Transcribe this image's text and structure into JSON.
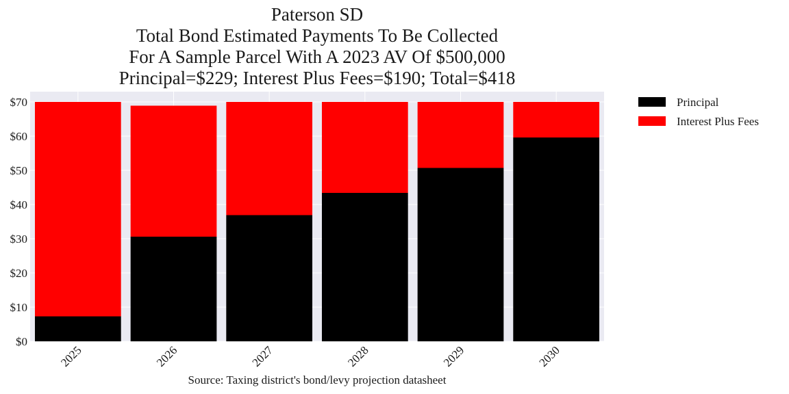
{
  "chart_data": {
    "type": "bar",
    "stacked": true,
    "title_lines": [
      "Paterson SD",
      "Total Bond Estimated Payments To Be Collected",
      "For A Sample Parcel With A 2023 AV Of $500,000",
      "Principal=$229; Interest Plus Fees=$190; Total=$418"
    ],
    "categories": [
      "2025",
      "2026",
      "2027",
      "2028",
      "2029",
      "2030"
    ],
    "series": [
      {
        "name": "Principal",
        "color": "#000000",
        "values": [
          7.3,
          30.6,
          36.9,
          43.4,
          50.7,
          59.6
        ]
      },
      {
        "name": "Interest Plus Fees",
        "color": "#ff0000",
        "values": [
          62.7,
          38.3,
          33.1,
          26.6,
          19.3,
          10.4
        ]
      }
    ],
    "ylim": [
      0,
      73
    ],
    "yticks": [
      0,
      10,
      20,
      30,
      40,
      50,
      60,
      70
    ],
    "ytick_labels": [
      "$0",
      "$10",
      "$20",
      "$30",
      "$40",
      "$50",
      "$60",
      "$70"
    ],
    "grid": true,
    "plot_background": "#eaeaf2",
    "legend_position": "outside-top-right",
    "source": "Source: Taxing district's bond/levy projection datasheet"
  }
}
